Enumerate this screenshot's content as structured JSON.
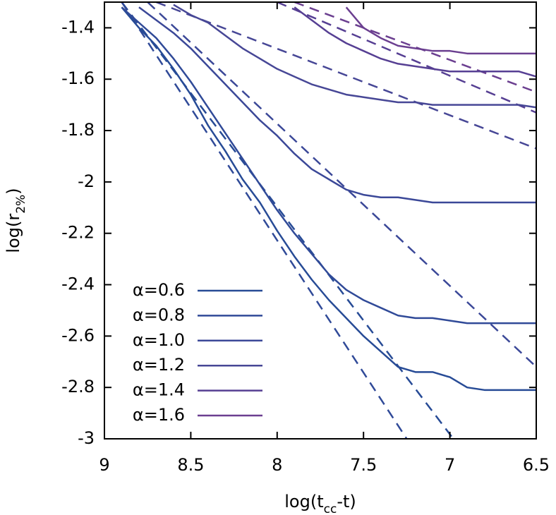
{
  "chart_data": {
    "type": "line",
    "xlabel": [
      "log(t",
      "cc",
      "-t)"
    ],
    "ylabel": [
      "log(r",
      "2%",
      ")"
    ],
    "xlim": [
      9,
      6.5
    ],
    "xticks": [
      9,
      8.5,
      8,
      7.5,
      7,
      6.5
    ],
    "ylim": [
      -3,
      -1.3
    ],
    "yticks": [
      -3,
      -2.8,
      -2.6,
      -2.4,
      -2.2,
      -2,
      -1.8,
      -1.6,
      -1.4
    ],
    "legend": "lower left",
    "x": [
      8.9,
      8.8,
      8.7,
      8.6,
      8.5,
      8.4,
      8.3,
      8.2,
      8.1,
      8.0,
      7.9,
      7.8,
      7.7,
      7.6,
      7.5,
      7.4,
      7.3,
      7.2,
      7.1,
      7.0,
      6.9,
      6.8,
      6.7,
      6.6,
      6.5
    ],
    "series": [
      {
        "name": "α=0.6",
        "color": "#274b96",
        "values": [
          -1.32,
          -1.4,
          -1.47,
          -1.56,
          -1.66,
          -1.78,
          -1.88,
          -1.99,
          -2.08,
          -2.19,
          -2.29,
          -2.38,
          -2.46,
          -2.53,
          -2.6,
          -2.66,
          -2.72,
          -2.74,
          -2.74,
          -2.76,
          -2.8,
          -2.81,
          -2.81,
          -2.81,
          -2.81
        ]
      },
      {
        "name": "α=0.8",
        "color": "#304a98",
        "values": [
          -1.32,
          -1.38,
          -1.44,
          -1.52,
          -1.61,
          -1.71,
          -1.81,
          -1.91,
          -2.01,
          -2.11,
          -2.2,
          -2.28,
          -2.36,
          -2.42,
          -2.46,
          -2.49,
          -2.52,
          -2.53,
          -2.53,
          -2.54,
          -2.55,
          -2.55,
          -2.55,
          -2.55,
          -2.55
        ]
      },
      {
        "name": "α=1.0",
        "color": "#3b4898",
        "values": [
          null,
          -1.32,
          -1.37,
          -1.42,
          -1.48,
          -1.55,
          -1.62,
          -1.69,
          -1.76,
          -1.82,
          -1.89,
          -1.95,
          -1.99,
          -2.03,
          -2.05,
          -2.06,
          -2.06,
          -2.07,
          -2.08,
          -2.08,
          -2.08,
          -2.08,
          -2.08,
          -2.08,
          -2.08
        ]
      },
      {
        "name": "α=1.2",
        "color": "#474796",
        "values": [
          null,
          null,
          null,
          -1.31,
          -1.35,
          -1.38,
          -1.43,
          -1.48,
          -1.52,
          -1.56,
          -1.59,
          -1.62,
          -1.64,
          -1.66,
          -1.67,
          -1.68,
          -1.69,
          -1.69,
          -1.7,
          -1.7,
          -1.7,
          -1.7,
          -1.7,
          -1.7,
          -1.71
        ]
      },
      {
        "name": "α=1.4",
        "color": "#563f93",
        "values": [
          null,
          null,
          null,
          null,
          null,
          null,
          null,
          null,
          null,
          null,
          -1.32,
          -1.37,
          -1.42,
          -1.46,
          -1.49,
          -1.52,
          -1.54,
          -1.55,
          -1.56,
          -1.57,
          -1.57,
          -1.57,
          -1.57,
          -1.57,
          -1.59
        ]
      },
      {
        "name": "α=1.6",
        "color": "#6b3f90",
        "values": [
          null,
          null,
          null,
          null,
          null,
          null,
          null,
          null,
          null,
          null,
          null,
          null,
          null,
          -1.32,
          -1.4,
          -1.44,
          -1.47,
          -1.48,
          -1.49,
          -1.49,
          -1.5,
          -1.5,
          -1.5,
          -1.5,
          -1.5
        ]
      }
    ],
    "fits": [
      {
        "color": "#274b96",
        "x": [
          8.9,
          6.98
        ],
        "values": [
          -1.3,
          -3.0
        ]
      },
      {
        "color": "#304a98",
        "x": [
          8.9,
          7.25
        ],
        "values": [
          -1.3,
          -3.0
        ]
      },
      {
        "color": "#3b4898",
        "x": [
          8.75,
          6.5
        ],
        "values": [
          -1.3,
          -2.72
        ]
      },
      {
        "color": "#474796",
        "x": [
          8.7,
          6.5
        ],
        "values": [
          -1.3,
          -1.87
        ]
      },
      {
        "color": "#563f93",
        "x": [
          8.0,
          6.5
        ],
        "values": [
          -1.3,
          -1.73
        ]
      },
      {
        "color": "#6b3f90",
        "x": [
          7.9,
          6.5
        ],
        "values": [
          -1.3,
          -1.65
        ]
      }
    ]
  }
}
